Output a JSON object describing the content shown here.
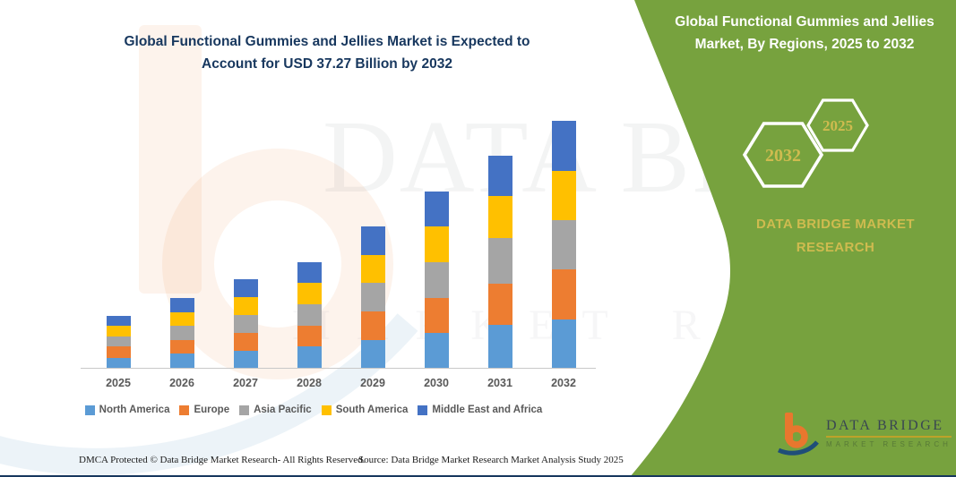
{
  "theme": {
    "green": "#77A23E",
    "gold": "#CFBB4F",
    "navy": "#17375E",
    "axis_text": "#595959"
  },
  "chart": {
    "title_line1": "Global Functional Gummies and Jellies Market is Expected to",
    "title_line2": "Account for USD 37.27 Billion by 2032"
  },
  "side_panel": {
    "title_line1": "Global Functional Gummies and Jellies",
    "title_line2": "Market, By Regions, 2025 to 2032",
    "hex_back_year": "2032",
    "hex_front_year": "2025",
    "brand_line1": "DATA BRIDGE MARKET",
    "brand_line2": "RESEARCH"
  },
  "logo": {
    "name": "DATA BRIDGE",
    "subtitle": "MARKET RESEARCH"
  },
  "watermark": {
    "big": "DATA BRIDGE",
    "spaced": "MARKET RESEARCH"
  },
  "footer": {
    "left": "DMCA Protected © Data Bridge Market Research-  All Rights Reserved.",
    "right": "Source: Data Bridge Market Research  Market Analysis Study 2025"
  },
  "chart_data": {
    "type": "bar",
    "stacked": true,
    "title": "Global Functional Gummies and Jellies Market is Expected to Account for USD 37.27 Billion by 2032",
    "unit": "USD Billion",
    "categories": [
      "2025",
      "2026",
      "2027",
      "2028",
      "2029",
      "2030",
      "2031",
      "2032"
    ],
    "series": [
      {
        "name": "North America",
        "color": "#5B9BD5",
        "values": [
          1.5,
          2.1,
          2.6,
          3.2,
          4.2,
          5.3,
          6.5,
          7.3
        ]
      },
      {
        "name": "Europe",
        "color": "#ED7D31",
        "values": [
          1.7,
          2.1,
          2.7,
          3.2,
          4.3,
          5.3,
          6.2,
          7.5
        ]
      },
      {
        "name": "Asia Pacific",
        "color": "#A5A5A5",
        "values": [
          1.6,
          2.1,
          2.7,
          3.2,
          4.3,
          5.4,
          6.9,
          7.5
        ]
      },
      {
        "name": "South America",
        "color": "#FFC000",
        "values": [
          1.6,
          2.1,
          2.6,
          3.2,
          4.2,
          5.3,
          6.3,
          7.4
        ]
      },
      {
        "name": "Middle East and Africa",
        "color": "#4472C4",
        "values": [
          1.5,
          2.1,
          2.7,
          3.2,
          4.3,
          5.3,
          6.1,
          7.57
        ]
      }
    ],
    "totals": [
      7.9,
      10.5,
      13.3,
      16.0,
      21.3,
      26.6,
      32.0,
      37.27
    ],
    "ylim": [
      0,
      37.27
    ],
    "grid": false,
    "y_axis_visible": false,
    "legend_position": "bottom",
    "highlight_value": "USD 37.27 Billion by 2032"
  }
}
